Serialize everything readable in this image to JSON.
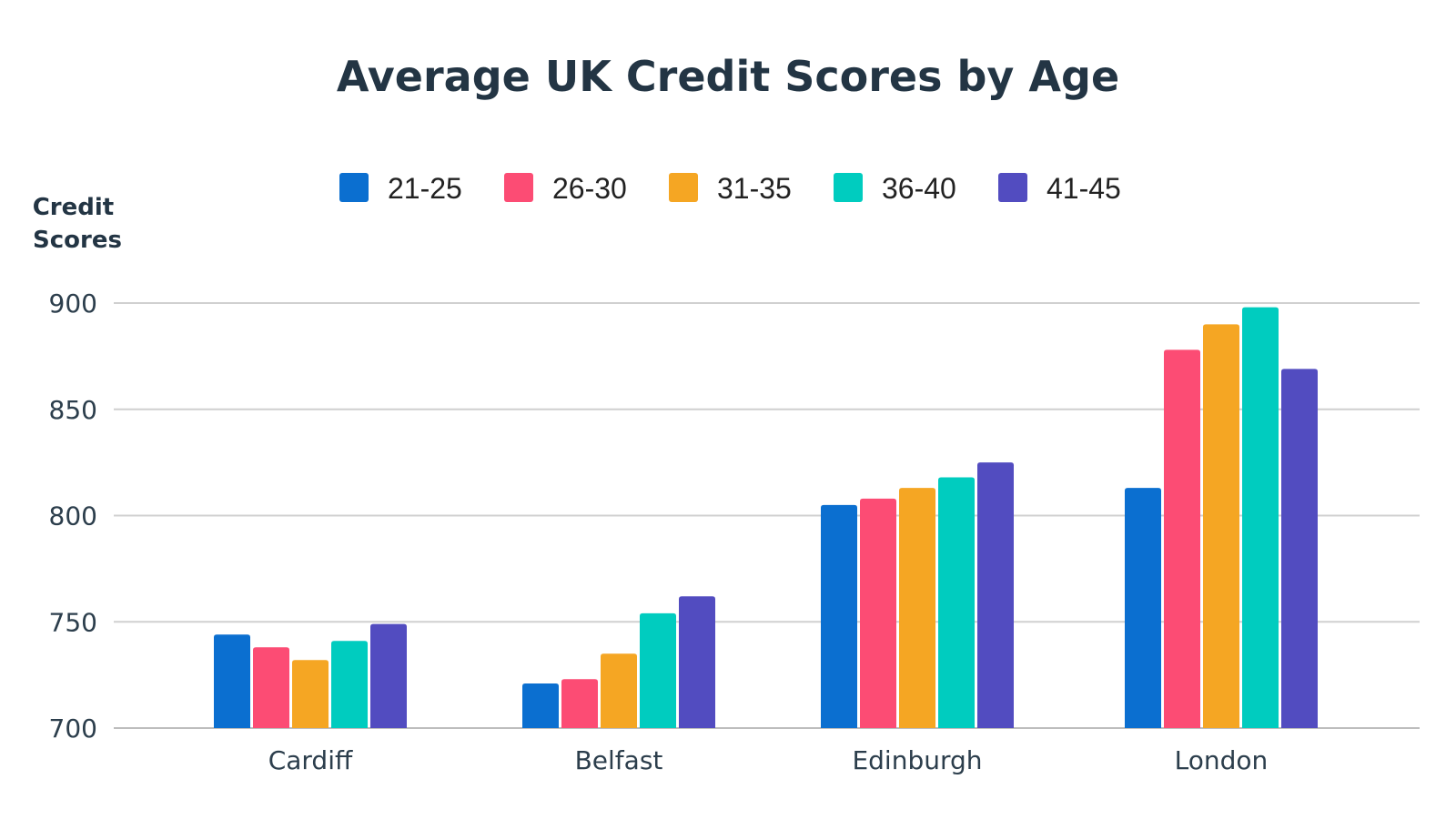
{
  "chart_data": {
    "type": "bar",
    "title": "Average UK Credit Scores by Age",
    "xlabel": "",
    "ylabel": [
      "Credit",
      "Scores"
    ],
    "ylim": [
      700,
      900
    ],
    "yticks": [
      "700",
      "750",
      "800",
      "850",
      "900"
    ],
    "grid": true,
    "legend_position": "top",
    "categories": [
      "Cardiff",
      "Belfast",
      "Edinburgh",
      "London"
    ],
    "series": [
      {
        "name": "21-25",
        "color": "#0b6fd0",
        "values": [
          744,
          721,
          805,
          813
        ]
      },
      {
        "name": "26-30",
        "color": "#fc4c74",
        "values": [
          738,
          723,
          808,
          878
        ]
      },
      {
        "name": "31-35",
        "color": "#f5a623",
        "values": [
          732,
          735,
          813,
          890
        ]
      },
      {
        "name": "36-40",
        "color": "#00ccbf",
        "values": [
          741,
          754,
          818,
          898
        ]
      },
      {
        "name": "41-45",
        "color": "#524cc0",
        "values": [
          749,
          762,
          825,
          869
        ]
      }
    ]
  }
}
